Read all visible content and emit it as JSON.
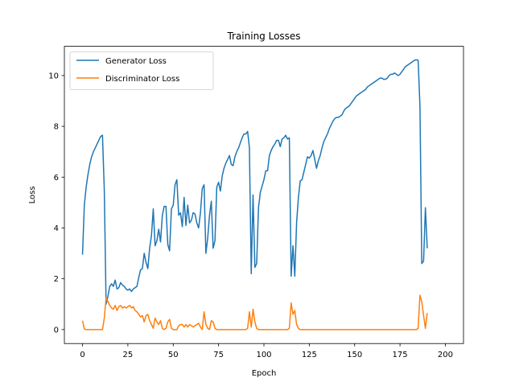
{
  "chart_data": {
    "type": "line",
    "title": "Training Losses",
    "xlabel": "Epoch",
    "ylabel": "Loss",
    "xlim": [
      -10,
      210
    ],
    "ylim": [
      -0.55,
      11.15
    ],
    "xticks": [
      0,
      25,
      50,
      75,
      100,
      125,
      150,
      175,
      200
    ],
    "yticks": [
      0,
      2,
      4,
      6,
      8,
      10
    ],
    "grid": false,
    "legend_position": "upper-left",
    "series": [
      {
        "name": "Generator Loss",
        "color": "#1f77b4",
        "points": [
          [
            0,
            2.95
          ],
          [
            1,
            4.9
          ],
          [
            2,
            5.6
          ],
          [
            3,
            6.1
          ],
          [
            4,
            6.5
          ],
          [
            5,
            6.8
          ],
          [
            6,
            7.0
          ],
          [
            7,
            7.15
          ],
          [
            8,
            7.3
          ],
          [
            9,
            7.45
          ],
          [
            10,
            7.6
          ],
          [
            11,
            7.65
          ],
          [
            12,
            5.5
          ],
          [
            13,
            1.0
          ],
          [
            14,
            1.3
          ],
          [
            15,
            1.7
          ],
          [
            16,
            1.8
          ],
          [
            17,
            1.7
          ],
          [
            18,
            1.95
          ],
          [
            19,
            1.6
          ],
          [
            20,
            1.65
          ],
          [
            21,
            1.85
          ],
          [
            22,
            1.75
          ],
          [
            23,
            1.7
          ],
          [
            24,
            1.6
          ],
          [
            25,
            1.55
          ],
          [
            26,
            1.6
          ],
          [
            27,
            1.5
          ],
          [
            28,
            1.6
          ],
          [
            29,
            1.65
          ],
          [
            30,
            1.7
          ],
          [
            31,
            2.05
          ],
          [
            32,
            2.35
          ],
          [
            33,
            2.4
          ],
          [
            34,
            3.0
          ],
          [
            35,
            2.65
          ],
          [
            36,
            2.4
          ],
          [
            37,
            3.2
          ],
          [
            38,
            3.7
          ],
          [
            39,
            4.75
          ],
          [
            40,
            3.3
          ],
          [
            41,
            3.5
          ],
          [
            42,
            3.95
          ],
          [
            43,
            3.45
          ],
          [
            44,
            4.5
          ],
          [
            45,
            4.85
          ],
          [
            46,
            4.85
          ],
          [
            47,
            3.35
          ],
          [
            48,
            3.1
          ],
          [
            49,
            4.75
          ],
          [
            50,
            4.9
          ],
          [
            51,
            5.7
          ],
          [
            52,
            5.9
          ],
          [
            53,
            4.5
          ],
          [
            54,
            4.6
          ],
          [
            55,
            4.05
          ],
          [
            56,
            5.2
          ],
          [
            57,
            4.1
          ],
          [
            58,
            4.9
          ],
          [
            59,
            4.2
          ],
          [
            60,
            4.3
          ],
          [
            61,
            4.6
          ],
          [
            62,
            4.55
          ],
          [
            63,
            4.2
          ],
          [
            64,
            4.0
          ],
          [
            65,
            4.6
          ],
          [
            66,
            5.55
          ],
          [
            67,
            5.7
          ],
          [
            68,
            3.0
          ],
          [
            69,
            3.6
          ],
          [
            70,
            4.5
          ],
          [
            71,
            5.05
          ],
          [
            72,
            3.2
          ],
          [
            73,
            3.5
          ],
          [
            74,
            5.6
          ],
          [
            75,
            5.8
          ],
          [
            76,
            5.45
          ],
          [
            77,
            6.05
          ],
          [
            78,
            6.35
          ],
          [
            79,
            6.55
          ],
          [
            80,
            6.7
          ],
          [
            81,
            6.85
          ],
          [
            82,
            6.5
          ],
          [
            83,
            6.45
          ],
          [
            84,
            6.8
          ],
          [
            85,
            7.0
          ],
          [
            86,
            7.15
          ],
          [
            87,
            7.35
          ],
          [
            88,
            7.55
          ],
          [
            89,
            7.7
          ],
          [
            90,
            7.7
          ],
          [
            91,
            7.8
          ],
          [
            92,
            7.15
          ],
          [
            93,
            2.2
          ],
          [
            94,
            5.3
          ],
          [
            95,
            2.45
          ],
          [
            96,
            2.6
          ],
          [
            97,
            4.8
          ],
          [
            98,
            5.4
          ],
          [
            99,
            5.65
          ],
          [
            100,
            5.9
          ],
          [
            101,
            6.25
          ],
          [
            102,
            6.25
          ],
          [
            103,
            6.85
          ],
          [
            104,
            7.05
          ],
          [
            105,
            7.2
          ],
          [
            106,
            7.3
          ],
          [
            107,
            7.45
          ],
          [
            108,
            7.45
          ],
          [
            109,
            7.2
          ],
          [
            110,
            7.5
          ],
          [
            111,
            7.55
          ],
          [
            112,
            7.65
          ],
          [
            113,
            7.5
          ],
          [
            114,
            7.55
          ],
          [
            115,
            2.1
          ],
          [
            116,
            3.3
          ],
          [
            117,
            2.1
          ],
          [
            118,
            4.2
          ],
          [
            119,
            5.2
          ],
          [
            120,
            5.85
          ],
          [
            121,
            5.9
          ],
          [
            122,
            6.2
          ],
          [
            123,
            6.5
          ],
          [
            124,
            6.8
          ],
          [
            125,
            6.75
          ],
          [
            126,
            6.85
          ],
          [
            127,
            7.05
          ],
          [
            128,
            6.7
          ],
          [
            129,
            6.35
          ],
          [
            130,
            6.65
          ],
          [
            131,
            6.85
          ],
          [
            132,
            7.15
          ],
          [
            133,
            7.4
          ],
          [
            134,
            7.55
          ],
          [
            135,
            7.7
          ],
          [
            136,
            7.9
          ],
          [
            137,
            8.05
          ],
          [
            138,
            8.2
          ],
          [
            139,
            8.3
          ],
          [
            140,
            8.35
          ],
          [
            141,
            8.35
          ],
          [
            142,
            8.4
          ],
          [
            143,
            8.45
          ],
          [
            144,
            8.6
          ],
          [
            145,
            8.7
          ],
          [
            146,
            8.75
          ],
          [
            147,
            8.8
          ],
          [
            148,
            8.9
          ],
          [
            149,
            9.0
          ],
          [
            150,
            9.1
          ],
          [
            151,
            9.2
          ],
          [
            152,
            9.25
          ],
          [
            153,
            9.3
          ],
          [
            154,
            9.35
          ],
          [
            155,
            9.4
          ],
          [
            156,
            9.45
          ],
          [
            157,
            9.55
          ],
          [
            158,
            9.6
          ],
          [
            159,
            9.65
          ],
          [
            160,
            9.7
          ],
          [
            161,
            9.75
          ],
          [
            162,
            9.8
          ],
          [
            163,
            9.85
          ],
          [
            164,
            9.9
          ],
          [
            165,
            9.9
          ],
          [
            166,
            9.85
          ],
          [
            167,
            9.85
          ],
          [
            168,
            9.9
          ],
          [
            169,
            10.0
          ],
          [
            170,
            10.05
          ],
          [
            171,
            10.05
          ],
          [
            172,
            10.1
          ],
          [
            173,
            10.05
          ],
          [
            174,
            10.0
          ],
          [
            175,
            10.05
          ],
          [
            176,
            10.15
          ],
          [
            177,
            10.25
          ],
          [
            178,
            10.35
          ],
          [
            179,
            10.4
          ],
          [
            180,
            10.45
          ],
          [
            181,
            10.5
          ],
          [
            182,
            10.55
          ],
          [
            183,
            10.6
          ],
          [
            184,
            10.62
          ],
          [
            185,
            10.6
          ],
          [
            186,
            8.8
          ],
          [
            187,
            2.6
          ],
          [
            188,
            2.7
          ],
          [
            189,
            4.8
          ],
          [
            190,
            3.2
          ]
        ]
      },
      {
        "name": "Discriminator Loss",
        "color": "#ff7f0e",
        "points": [
          [
            0,
            0.35
          ],
          [
            1,
            0.02
          ],
          [
            2,
            0.0
          ],
          [
            3,
            0.0
          ],
          [
            4,
            0.0
          ],
          [
            5,
            0.0
          ],
          [
            6,
            0.0
          ],
          [
            7,
            0.0
          ],
          [
            8,
            0.0
          ],
          [
            9,
            0.0
          ],
          [
            10,
            0.0
          ],
          [
            11,
            0.0
          ],
          [
            12,
            0.45
          ],
          [
            13,
            1.25
          ],
          [
            14,
            1.1
          ],
          [
            15,
            0.95
          ],
          [
            16,
            0.85
          ],
          [
            17,
            0.8
          ],
          [
            18,
            0.95
          ],
          [
            19,
            0.75
          ],
          [
            20,
            0.9
          ],
          [
            21,
            0.95
          ],
          [
            22,
            0.85
          ],
          [
            23,
            0.9
          ],
          [
            24,
            0.85
          ],
          [
            25,
            0.9
          ],
          [
            26,
            0.95
          ],
          [
            27,
            0.85
          ],
          [
            28,
            0.9
          ],
          [
            29,
            0.75
          ],
          [
            30,
            0.7
          ],
          [
            31,
            0.6
          ],
          [
            32,
            0.5
          ],
          [
            33,
            0.55
          ],
          [
            34,
            0.3
          ],
          [
            35,
            0.55
          ],
          [
            36,
            0.6
          ],
          [
            37,
            0.35
          ],
          [
            38,
            0.2
          ],
          [
            39,
            0.05
          ],
          [
            40,
            0.45
          ],
          [
            41,
            0.3
          ],
          [
            42,
            0.2
          ],
          [
            43,
            0.35
          ],
          [
            44,
            0.05
          ],
          [
            45,
            0.0
          ],
          [
            46,
            0.05
          ],
          [
            47,
            0.3
          ],
          [
            48,
            0.4
          ],
          [
            49,
            0.05
          ],
          [
            50,
            0.0
          ],
          [
            51,
            0.0
          ],
          [
            52,
            0.0
          ],
          [
            53,
            0.15
          ],
          [
            54,
            0.2
          ],
          [
            55,
            0.2
          ],
          [
            56,
            0.1
          ],
          [
            57,
            0.2
          ],
          [
            58,
            0.1
          ],
          [
            59,
            0.2
          ],
          [
            60,
            0.15
          ],
          [
            61,
            0.1
          ],
          [
            62,
            0.15
          ],
          [
            63,
            0.2
          ],
          [
            64,
            0.25
          ],
          [
            65,
            0.1
          ],
          [
            66,
            0.0
          ],
          [
            67,
            0.7
          ],
          [
            68,
            0.2
          ],
          [
            69,
            0.05
          ],
          [
            70,
            0.0
          ],
          [
            71,
            0.35
          ],
          [
            72,
            0.3
          ],
          [
            73,
            0.05
          ],
          [
            74,
            0.0
          ],
          [
            75,
            0.0
          ],
          [
            76,
            0.0
          ],
          [
            77,
            0.0
          ],
          [
            78,
            0.0
          ],
          [
            79,
            0.0
          ],
          [
            80,
            0.0
          ],
          [
            81,
            0.0
          ],
          [
            82,
            0.0
          ],
          [
            83,
            0.0
          ],
          [
            84,
            0.0
          ],
          [
            85,
            0.0
          ],
          [
            86,
            0.0
          ],
          [
            87,
            0.0
          ],
          [
            88,
            0.0
          ],
          [
            89,
            0.0
          ],
          [
            90,
            0.0
          ],
          [
            91,
            0.05
          ],
          [
            92,
            0.7
          ],
          [
            93,
            0.1
          ],
          [
            94,
            0.8
          ],
          [
            95,
            0.3
          ],
          [
            96,
            0.05
          ],
          [
            97,
            0.0
          ],
          [
            98,
            0.0
          ],
          [
            99,
            0.0
          ],
          [
            100,
            0.0
          ],
          [
            101,
            0.0
          ],
          [
            102,
            0.0
          ],
          [
            103,
            0.0
          ],
          [
            104,
            0.0
          ],
          [
            105,
            0.0
          ],
          [
            106,
            0.0
          ],
          [
            107,
            0.0
          ],
          [
            108,
            0.0
          ],
          [
            109,
            0.0
          ],
          [
            110,
            0.0
          ],
          [
            111,
            0.0
          ],
          [
            112,
            0.0
          ],
          [
            113,
            0.0
          ],
          [
            114,
            0.05
          ],
          [
            115,
            1.05
          ],
          [
            116,
            0.6
          ],
          [
            117,
            0.75
          ],
          [
            118,
            0.2
          ],
          [
            119,
            0.05
          ],
          [
            120,
            0.0
          ],
          [
            121,
            0.0
          ],
          [
            122,
            0.0
          ],
          [
            123,
            0.0
          ],
          [
            124,
            0.0
          ],
          [
            125,
            0.0
          ],
          [
            130,
            0.0
          ],
          [
            140,
            0.0
          ],
          [
            150,
            0.0
          ],
          [
            160,
            0.0
          ],
          [
            170,
            0.0
          ],
          [
            180,
            0.0
          ],
          [
            184,
            0.0
          ],
          [
            185,
            0.05
          ],
          [
            186,
            1.35
          ],
          [
            187,
            1.1
          ],
          [
            188,
            0.55
          ],
          [
            189,
            0.05
          ],
          [
            190,
            0.65
          ]
        ]
      }
    ]
  }
}
